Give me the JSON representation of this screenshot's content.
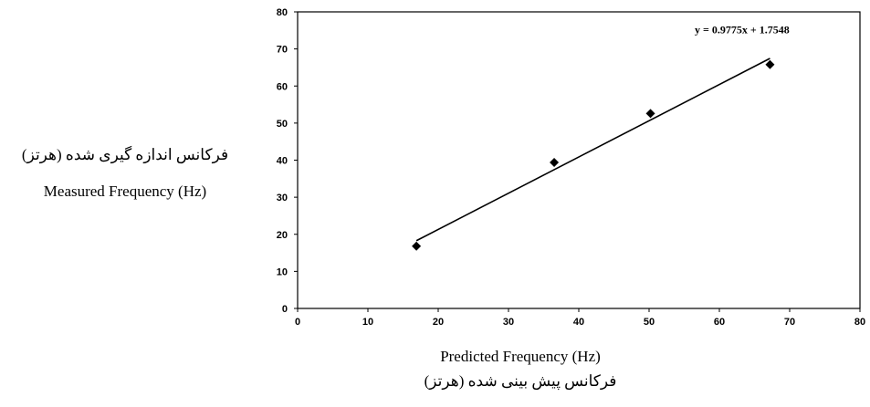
{
  "chart_data": {
    "type": "scatter",
    "title": "",
    "xlabel": "Predicted Frequency (Hz)",
    "xlabel_fa": "فرکانس پیش بینی شده (هرتز)",
    "ylabel_fa": "فرکانس اندازه گیری شده (هرتز)",
    "ylabel": "Measured Frequency (Hz)",
    "xlim": [
      0,
      80
    ],
    "ylim": [
      0,
      80
    ],
    "xticks": [
      "0",
      "10",
      "20",
      "30",
      "40",
      "50",
      "60",
      "70",
      "80"
    ],
    "yticks": [
      "0",
      "10",
      "20",
      "30",
      "40",
      "50",
      "60",
      "70",
      "80"
    ],
    "grid": false,
    "points": [
      {
        "x": 16.9,
        "y": 16.8
      },
      {
        "x": 36.5,
        "y": 39.4
      },
      {
        "x": 50.2,
        "y": 52.6
      },
      {
        "x": 67.2,
        "y": 65.8
      }
    ],
    "trendline": {
      "slope": 0.9775,
      "intercept": 1.7548,
      "x_range": [
        16.9,
        67.2
      ],
      "equation": "y = 0.9775x + 1.7548"
    }
  }
}
